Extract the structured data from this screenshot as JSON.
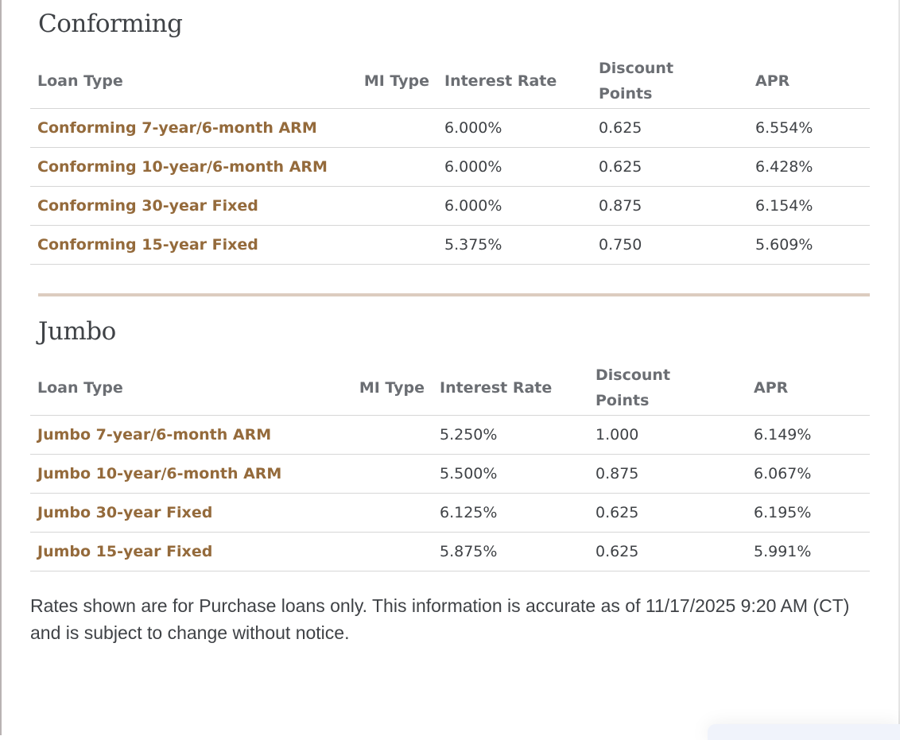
{
  "sections": [
    {
      "title": "Conforming",
      "headers": {
        "loan_type": "Loan Type",
        "mi_type": "MI Type",
        "interest_rate": "Interest Rate",
        "discount_points": "Discount Points",
        "apr": "APR"
      },
      "rows": [
        {
          "loan_type": "Conforming 7-year/6-month ARM",
          "mi_type": "",
          "interest_rate": "6.000%",
          "discount_points": "0.625",
          "apr": "6.554%"
        },
        {
          "loan_type": "Conforming 10-year/6-month ARM",
          "mi_type": "",
          "interest_rate": "6.000%",
          "discount_points": "0.625",
          "apr": "6.428%"
        },
        {
          "loan_type": "Conforming 30-year Fixed",
          "mi_type": "",
          "interest_rate": "6.000%",
          "discount_points": "0.875",
          "apr": "6.154%"
        },
        {
          "loan_type": "Conforming 15-year Fixed",
          "mi_type": "",
          "interest_rate": "5.375%",
          "discount_points": "0.750",
          "apr": "5.609%"
        }
      ]
    },
    {
      "title": "Jumbo",
      "headers": {
        "loan_type": "Loan Type",
        "mi_type": "MI Type",
        "interest_rate": "Interest Rate",
        "discount_points": "Discount Points",
        "apr": "APR"
      },
      "rows": [
        {
          "loan_type": "Jumbo 7-year/6-month ARM",
          "mi_type": "",
          "interest_rate": "5.250%",
          "discount_points": "1.000",
          "apr": "6.149%"
        },
        {
          "loan_type": "Jumbo 10-year/6-month ARM",
          "mi_type": "",
          "interest_rate": "5.500%",
          "discount_points": "0.875",
          "apr": "6.067%"
        },
        {
          "loan_type": "Jumbo 30-year Fixed",
          "mi_type": "",
          "interest_rate": "6.125%",
          "discount_points": "0.625",
          "apr": "6.195%"
        },
        {
          "loan_type": "Jumbo 15-year Fixed",
          "mi_type": "",
          "interest_rate": "5.875%",
          "discount_points": "0.625",
          "apr": "5.991%"
        }
      ]
    }
  ],
  "footer": "Rates shown are for Purchase loans only. This information is accurate as of 11/17/2025 9:20 AM (CT) and is subject to change without notice.",
  "colors": {
    "link": "#946a3b",
    "header": "#6b6e73",
    "text": "#3f4246",
    "separator": "#dcccbf"
  }
}
